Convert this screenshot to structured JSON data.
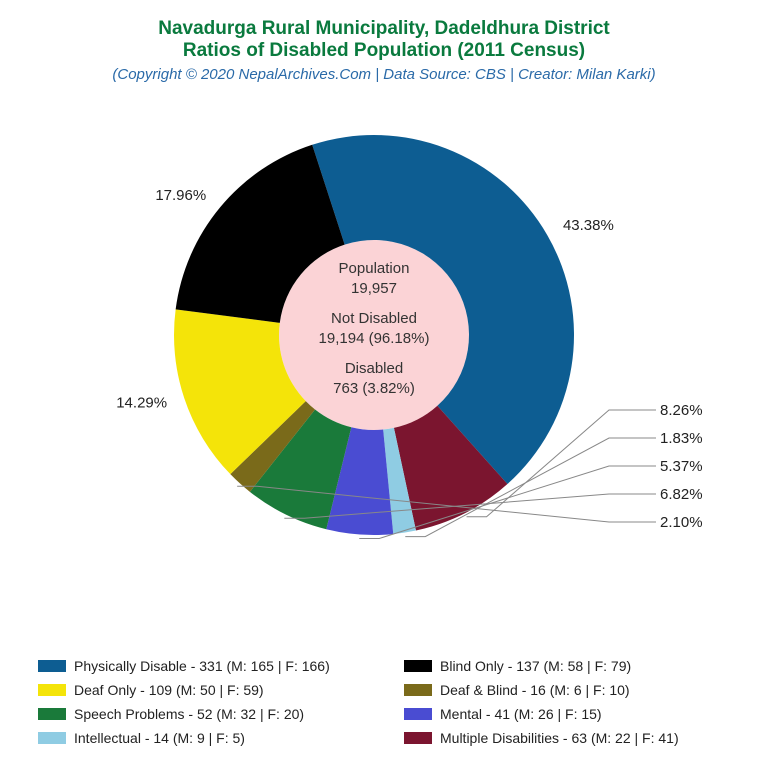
{
  "title": {
    "line1": "Navadurga Rural Municipality, Dadeldhura District",
    "line2": "Ratios of Disabled Population (2011 Census)",
    "color": "#0a7a3e",
    "fontsize": 19
  },
  "subtitle": {
    "text": "(Copyright © 2020 NepalArchives.Com | Data Source: CBS | Creator: Milan Karki)",
    "color": "#2a6aa8",
    "fontsize": 15
  },
  "chart": {
    "type": "donut",
    "outer_radius": 200,
    "inner_radius": 95,
    "background_color": "#ffffff",
    "center_fill": "#fbd3d6",
    "start_angle_deg": -18,
    "label_fontsize": 15,
    "center": {
      "lines": [
        "Population",
        "19,957",
        "",
        "Not Disabled",
        "19,194 (96.18%)",
        "",
        "Disabled",
        "763 (3.82%)"
      ]
    },
    "slices": [
      {
        "name": "Physically Disable",
        "count": 331,
        "m": 165,
        "f": 166,
        "pct": 43.38,
        "color": "#0d5d92",
        "label_placement": "outer"
      },
      {
        "name": "Multiple Disabilities",
        "count": 63,
        "m": 22,
        "f": 41,
        "pct": 8.26,
        "color": "#7b152f",
        "label_placement": "leader"
      },
      {
        "name": "Intellectual",
        "count": 14,
        "m": 9,
        "f": 5,
        "pct": 1.83,
        "color": "#8fcce3",
        "label_placement": "leader"
      },
      {
        "name": "Mental",
        "count": 41,
        "m": 26,
        "f": 15,
        "pct": 5.37,
        "color": "#4a4cd2",
        "label_placement": "leader"
      },
      {
        "name": "Speech Problems",
        "count": 52,
        "m": 32,
        "f": 20,
        "pct": 6.82,
        "color": "#1a7a3a",
        "label_placement": "leader"
      },
      {
        "name": "Deaf & Blind",
        "count": 16,
        "m": 6,
        "f": 10,
        "pct": 2.1,
        "color": "#7a6a1a",
        "label_placement": "leader"
      },
      {
        "name": "Deaf Only",
        "count": 109,
        "m": 50,
        "f": 59,
        "pct": 14.29,
        "color": "#f4e409",
        "label_placement": "outer"
      },
      {
        "name": "Blind Only",
        "count": 137,
        "m": 58,
        "f": 79,
        "pct": 17.96,
        "color": "#000000",
        "label_placement": "outer"
      }
    ],
    "legend_order": [
      0,
      7,
      6,
      5,
      4,
      3,
      2,
      1
    ]
  }
}
